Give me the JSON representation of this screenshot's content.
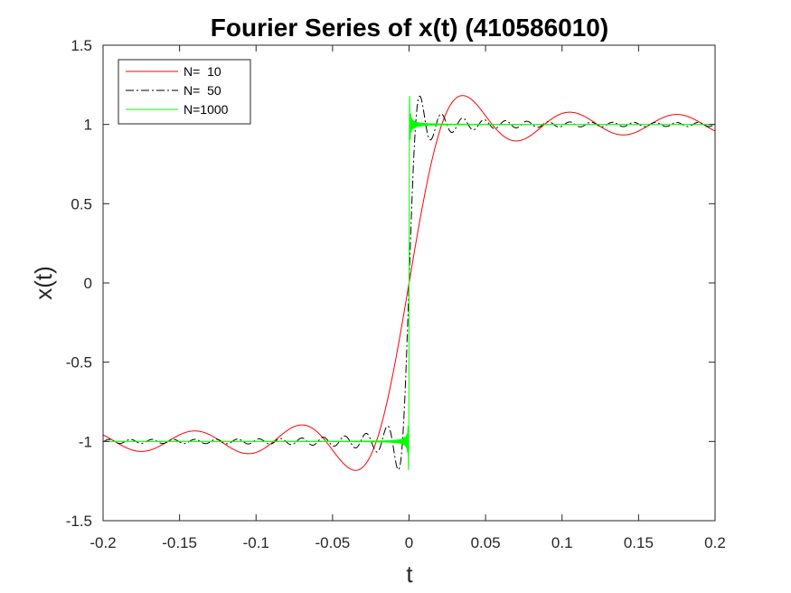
{
  "chart_data": {
    "type": "line",
    "title": "Fourier Series of x(t) (410586010)",
    "xlabel": "t",
    "ylabel": "x(t)",
    "xlim": [
      -0.2,
      0.2
    ],
    "ylim": [
      -1.5,
      1.5
    ],
    "xticks": [
      -0.2,
      -0.15,
      -0.1,
      -0.05,
      0,
      0.05,
      0.1,
      0.15,
      0.2
    ],
    "xtick_labels": [
      "-0.2",
      "-0.15",
      "-0.1",
      "-0.05",
      "0",
      "0.05",
      "0.1",
      "0.15",
      "0.2"
    ],
    "yticks": [
      -1.5,
      -1,
      -0.5,
      0,
      0.5,
      1,
      1.5
    ],
    "ytick_labels": [
      "-1.5",
      "-1",
      "-0.5",
      "0",
      "0.5",
      "1",
      "1.5"
    ],
    "grid": false,
    "legend_position": "top-left",
    "series": [
      {
        "name": "N=  10",
        "harmonics": 10,
        "color": "#ff0000",
        "dash": "solid"
      },
      {
        "name": "N=  50",
        "harmonics": 50,
        "color": "#000000",
        "dash": "dash-dot"
      },
      {
        "name": "N=1000",
        "harmonics": 1000,
        "color": "#00ff00",
        "dash": "solid"
      }
    ]
  }
}
